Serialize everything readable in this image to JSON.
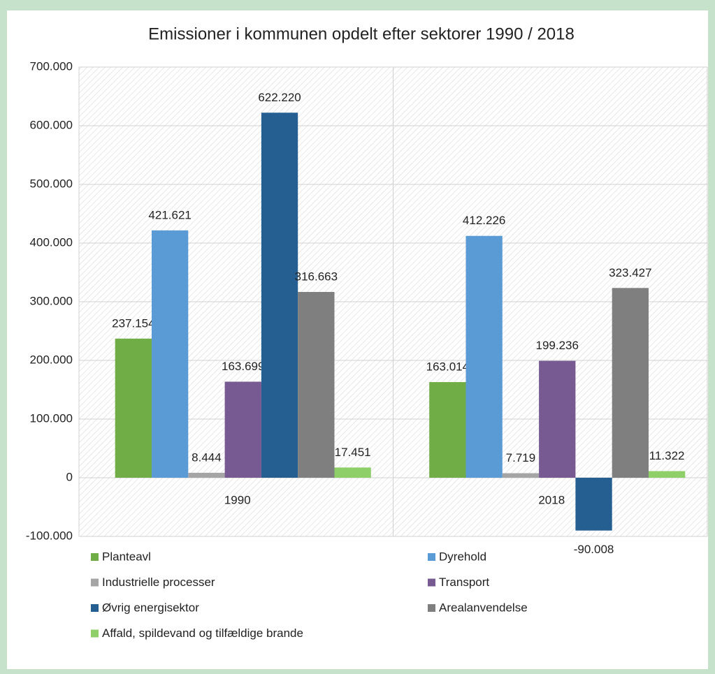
{
  "chart_data": {
    "type": "bar",
    "title": "Emissioner i kommunen opdelt efter sektorer 1990 / 2018",
    "categories": [
      "1990",
      "2018"
    ],
    "series": [
      {
        "name": "Planteavl",
        "color": "#70ad47",
        "values": [
          237154,
          163014
        ],
        "value_labels": [
          "237.154",
          "163.014"
        ]
      },
      {
        "name": "Dyrehold",
        "color": "#5b9bd5",
        "values": [
          421621,
          412226
        ],
        "value_labels": [
          "421.621",
          "412.226"
        ]
      },
      {
        "name": "Industrielle processer",
        "color": "#a5a5a5",
        "values": [
          8444,
          7719
        ],
        "value_labels": [
          "8.444",
          "7.719"
        ]
      },
      {
        "name": "Transport",
        "color": "#775a91",
        "values": [
          163699,
          199236
        ],
        "value_labels": [
          "163.699",
          "199.236"
        ]
      },
      {
        "name": "Øvrig energisektor",
        "color": "#255e91",
        "values": [
          622220,
          -90008
        ],
        "value_labels": [
          "622.220",
          "-90.008"
        ]
      },
      {
        "name": "Arealanvendelse",
        "color": "#7f7f7f",
        "values": [
          316663,
          323427
        ],
        "value_labels": [
          "316.663",
          "323.427"
        ]
      },
      {
        "name": "Affald, spildevand og tilfældige brande",
        "color": "#8fcf6a",
        "values": [
          17451,
          11322
        ],
        "value_labels": [
          "17.451",
          "11.322"
        ]
      }
    ],
    "ylim": [
      -100000,
      700000
    ],
    "yticks": [
      {
        "value": -100000,
        "label": "-100.000"
      },
      0,
      {
        "value": 100000,
        "label": "100.000"
      },
      {
        "value": 200000,
        "label": "200.000"
      },
      {
        "value": 300000,
        "label": "300.000"
      },
      {
        "value": 400000,
        "label": "400.000"
      },
      {
        "value": 500000,
        "label": "500.000"
      },
      {
        "value": 600000,
        "label": "600.000"
      },
      {
        "value": 700000,
        "label": "700.000"
      }
    ],
    "grid": true,
    "legend": "bottom"
  }
}
